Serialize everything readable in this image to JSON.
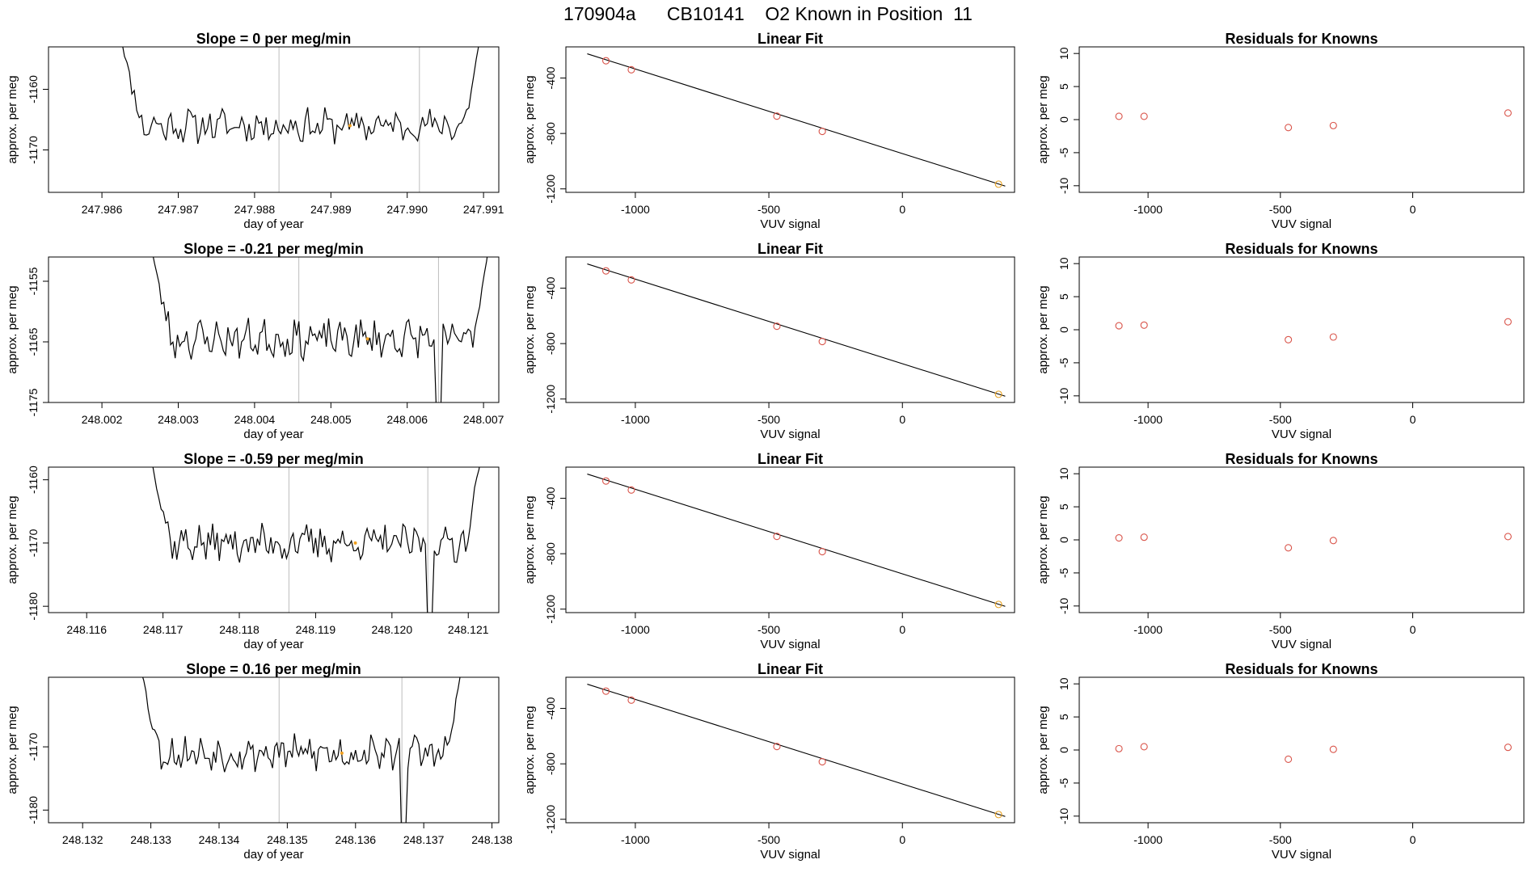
{
  "title": "170904a      CB10141    O2 Known in Position  11",
  "chart_data": [
    {
      "type": "line",
      "kind": "time",
      "row": 0,
      "title": "Slope =  0  per meg/min",
      "xlabel": "day of year",
      "ylabel": "approx. per meg",
      "xlim": [
        247.9853,
        247.9912
      ],
      "ylim": [
        -1177,
        -1153
      ],
      "xticks": [
        "247.986",
        "247.987",
        "247.988",
        "247.989",
        "247.990",
        "247.991"
      ],
      "yticks": [
        "-1160",
        "-1170"
      ],
      "series_x_range": [
        247.9862,
        247.991
      ],
      "baseline": -1166,
      "noise": 2.3,
      "dip": null,
      "seed": 11,
      "vlines": [
        247.98832,
        247.99016
      ],
      "highlight_point": {
        "x": 247.98925,
        "y": -1166
      }
    },
    {
      "type": "scatter",
      "kind": "fit",
      "row": 0,
      "title": "Linear Fit",
      "xlabel": "VUV signal",
      "ylabel": "approx. per meg",
      "xlim": [
        -1260,
        420
      ],
      "ylim": [
        -1225,
        -175
      ],
      "xticks": [
        -1000,
        -500,
        0
      ],
      "yticks": [
        -400,
        -800,
        -1200
      ],
      "points": [
        {
          "x": -1110,
          "y": -275
        },
        {
          "x": -1015,
          "y": -340
        },
        {
          "x": -470,
          "y": -675
        },
        {
          "x": -300,
          "y": -785
        },
        {
          "x": 360,
          "y": -1166
        }
      ],
      "fit_line": {
        "x0": -1180,
        "y0": -225,
        "x1": 385,
        "y1": -1180
      }
    },
    {
      "type": "scatter",
      "kind": "resid",
      "row": 0,
      "title": "Residuals for Knowns",
      "xlabel": "VUV signal",
      "ylabel": "approx. per meg",
      "xlim": [
        -1260,
        420
      ],
      "ylim": [
        -11,
        11
      ],
      "xticks": [
        -1000,
        -500,
        0
      ],
      "yticks": [
        10,
        5,
        0,
        -5,
        -10
      ],
      "points": [
        {
          "x": -1110,
          "y": 0.5
        },
        {
          "x": -1015,
          "y": 0.5
        },
        {
          "x": -470,
          "y": -1.2
        },
        {
          "x": -300,
          "y": -0.9
        },
        {
          "x": 360,
          "y": 1.0
        }
      ]
    },
    {
      "type": "line",
      "kind": "time",
      "row": 1,
      "title": "Slope =  -0.21  per meg/min",
      "xlabel": "day of year",
      "ylabel": "approx. per meg",
      "xlim": [
        248.0013,
        248.0072
      ],
      "ylim": [
        -1175,
        -1151
      ],
      "xticks": [
        "248.002",
        "248.003",
        "248.004",
        "248.005",
        "248.006",
        "248.007"
      ],
      "yticks": [
        "-1155",
        "-1165",
        "-1175"
      ],
      "series_x_range": [
        248.0026,
        248.0071
      ],
      "baseline": -1164.5,
      "noise": 2.6,
      "dip": {
        "x": 248.0064,
        "y": -1175
      },
      "seed": 23,
      "vlines": [
        248.00458,
        248.00641
      ],
      "highlight_point": {
        "x": 248.00548,
        "y": -1164.5
      }
    },
    {
      "type": "scatter",
      "kind": "fit",
      "row": 1,
      "title": "Linear Fit",
      "xlabel": "VUV signal",
      "ylabel": "approx. per meg",
      "xlim": [
        -1260,
        420
      ],
      "ylim": [
        -1225,
        -175
      ],
      "xticks": [
        -1000,
        -500,
        0
      ],
      "yticks": [
        -400,
        -800,
        -1200
      ],
      "points": [
        {
          "x": -1110,
          "y": -275
        },
        {
          "x": -1015,
          "y": -340
        },
        {
          "x": -470,
          "y": -675
        },
        {
          "x": -300,
          "y": -785
        },
        {
          "x": 360,
          "y": -1166
        }
      ],
      "fit_line": {
        "x0": -1180,
        "y0": -225,
        "x1": 385,
        "y1": -1180
      }
    },
    {
      "type": "scatter",
      "kind": "resid",
      "row": 1,
      "title": "Residuals for Knowns",
      "xlabel": "VUV signal",
      "ylabel": "approx. per meg",
      "xlim": [
        -1260,
        420
      ],
      "ylim": [
        -11,
        11
      ],
      "xticks": [
        -1000,
        -500,
        0
      ],
      "yticks": [
        10,
        5,
        0,
        -5,
        -10
      ],
      "points": [
        {
          "x": -1110,
          "y": 0.6
        },
        {
          "x": -1015,
          "y": 0.7
        },
        {
          "x": -470,
          "y": -1.5
        },
        {
          "x": -300,
          "y": -1.1
        },
        {
          "x": 360,
          "y": 1.2
        }
      ]
    },
    {
      "type": "line",
      "kind": "time",
      "row": 2,
      "title": "Slope =  -0.59  per meg/min",
      "xlabel": "day of year",
      "ylabel": "approx. per meg",
      "xlim": [
        248.1155,
        248.1214
      ],
      "ylim": [
        -1181,
        -1158
      ],
      "xticks": [
        "248.116",
        "248.117",
        "248.118",
        "248.119",
        "248.120",
        "248.121"
      ],
      "yticks": [
        "-1160",
        "-1170",
        "-1180"
      ],
      "series_x_range": [
        248.1168,
        248.1212
      ],
      "baseline": -1170,
      "noise": 2.4,
      "dip": {
        "x": 248.1205,
        "y": -1181
      },
      "seed": 37,
      "vlines": [
        248.11865,
        248.12047
      ],
      "highlight_point": {
        "x": 248.11952,
        "y": -1170
      }
    },
    {
      "type": "scatter",
      "kind": "fit",
      "row": 2,
      "title": "Linear Fit",
      "xlabel": "VUV signal",
      "ylabel": "approx. per meg",
      "xlim": [
        -1260,
        420
      ],
      "ylim": [
        -1225,
        -175
      ],
      "xticks": [
        -1000,
        -500,
        0
      ],
      "yticks": [
        -400,
        -800,
        -1200
      ],
      "points": [
        {
          "x": -1110,
          "y": -275
        },
        {
          "x": -1015,
          "y": -340
        },
        {
          "x": -470,
          "y": -675
        },
        {
          "x": -300,
          "y": -785
        },
        {
          "x": 360,
          "y": -1166
        }
      ],
      "fit_line": {
        "x0": -1180,
        "y0": -225,
        "x1": 385,
        "y1": -1180
      }
    },
    {
      "type": "scatter",
      "kind": "resid",
      "row": 2,
      "title": "Residuals for Knowns",
      "xlabel": "VUV signal",
      "ylabel": "approx. per meg",
      "xlim": [
        -1260,
        420
      ],
      "ylim": [
        -11,
        11
      ],
      "xticks": [
        -1000,
        -500,
        0
      ],
      "yticks": [
        10,
        5,
        0,
        -5,
        -10
      ],
      "points": [
        {
          "x": -1110,
          "y": 0.3
        },
        {
          "x": -1015,
          "y": 0.4
        },
        {
          "x": -470,
          "y": -1.2
        },
        {
          "x": -300,
          "y": -0.1
        },
        {
          "x": 360,
          "y": 0.5
        }
      ]
    },
    {
      "type": "line",
      "kind": "time",
      "row": 3,
      "title": "Slope =  0.16  per meg/min",
      "xlabel": "day of year",
      "ylabel": "approx. per meg",
      "xlim": [
        248.1315,
        248.1381
      ],
      "ylim": [
        -1182,
        -1159
      ],
      "xticks": [
        "248.132",
        "248.133",
        "248.134",
        "248.135",
        "248.136",
        "248.137",
        "248.138"
      ],
      "yticks": [
        "-1170",
        "-1180"
      ],
      "series_x_range": [
        248.1328,
        248.1376
      ],
      "baseline": -1171,
      "noise": 2.3,
      "dip": {
        "x": 248.1367,
        "y": -1182
      },
      "seed": 53,
      "vlines": [
        248.13488,
        248.13668
      ],
      "highlight_point": {
        "x": 248.1358,
        "y": -1171
      }
    },
    {
      "type": "scatter",
      "kind": "fit",
      "row": 3,
      "title": "Linear Fit",
      "xlabel": "VUV signal",
      "ylabel": "approx. per meg",
      "xlim": [
        -1260,
        420
      ],
      "ylim": [
        -1225,
        -175
      ],
      "xticks": [
        -1000,
        -500,
        0
      ],
      "yticks": [
        -400,
        -800,
        -1200
      ],
      "points": [
        {
          "x": -1110,
          "y": -275
        },
        {
          "x": -1015,
          "y": -340
        },
        {
          "x": -470,
          "y": -675
        },
        {
          "x": -300,
          "y": -785
        },
        {
          "x": 360,
          "y": -1166
        }
      ],
      "fit_line": {
        "x0": -1180,
        "y0": -225,
        "x1": 385,
        "y1": -1180
      }
    },
    {
      "type": "scatter",
      "kind": "resid",
      "row": 3,
      "title": "Residuals for Knowns",
      "xlabel": "VUV signal",
      "ylabel": "approx. per meg",
      "xlim": [
        -1260,
        420
      ],
      "ylim": [
        -11,
        11
      ],
      "xticks": [
        -1000,
        -500,
        0
      ],
      "yticks": [
        10,
        5,
        0,
        -5,
        -10
      ],
      "points": [
        {
          "x": -1110,
          "y": 0.2
        },
        {
          "x": -1015,
          "y": 0.5
        },
        {
          "x": -470,
          "y": -1.4
        },
        {
          "x": -300,
          "y": 0.1
        },
        {
          "x": 360,
          "y": 0.4
        }
      ]
    }
  ],
  "colors": {
    "axis": "#000000",
    "line": "#000000",
    "vline": "#bdbdbd",
    "point": "#d9544a",
    "last_point": "#e6a020",
    "highlight": "#f0a020"
  }
}
